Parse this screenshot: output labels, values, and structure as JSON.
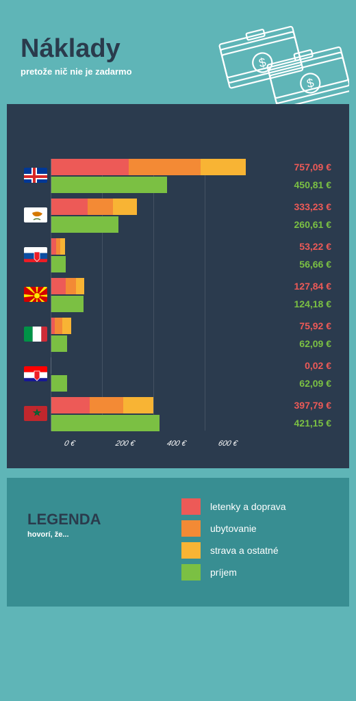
{
  "header": {
    "title": "Náklady",
    "subtitle": "pretože nič nie je zadarmo"
  },
  "chart": {
    "type": "grouped-stacked-bar",
    "x_max": 800,
    "x_ticks": [
      0,
      200,
      400,
      600
    ],
    "x_tick_labels": [
      "0 €",
      "200 €",
      "400 €",
      "600 €"
    ],
    "background": "#2b3b4e",
    "grid_color": "rgba(255,255,255,0.12)",
    "colors": {
      "letenky": "#ed5a57",
      "ubytovanie": "#f38a35",
      "strava": "#f8b434",
      "prijem": "#7bc043"
    },
    "countries": [
      {
        "name": "iceland",
        "flag": {
          "type": "nordic-cross",
          "bg": "#003897",
          "cross1": "#ffffff",
          "cross2": "#d72828"
        },
        "cost_value": "757,09 €",
        "cost_segments": [
          300,
          280,
          177
        ],
        "income_value": "450,81 €",
        "income": 450.81
      },
      {
        "name": "cyprus",
        "flag": {
          "type": "cyprus",
          "bg": "#ffffff"
        },
        "cost_value": "333,23 €",
        "cost_segments": [
          140,
          100,
          93
        ],
        "income_value": "260,61 €",
        "income": 260.61
      },
      {
        "name": "slovakia",
        "flag": {
          "type": "tricolor-h",
          "c1": "#ffffff",
          "c2": "#0b4ea2",
          "c3": "#ee1c25",
          "emblem": true
        },
        "cost_value": "53,22 €",
        "cost_segments": [
          18,
          17,
          18
        ],
        "income_value": "56,66 €",
        "income": 56.66
      },
      {
        "name": "macedonia",
        "flag": {
          "type": "macedonia",
          "bg": "#d20000",
          "sun": "#ffe600"
        },
        "cost_value": "127,84 €",
        "cost_segments": [
          55,
          40,
          33
        ],
        "income_value": "124,18 €",
        "income": 124.18
      },
      {
        "name": "italy",
        "flag": {
          "type": "tricolor-v",
          "c1": "#009246",
          "c2": "#ffffff",
          "c3": "#ce2b37"
        },
        "cost_value": "75,92 €",
        "cost_segments": [
          12,
          30,
          34
        ],
        "income_value": "62,09 €",
        "income": 62.09
      },
      {
        "name": "croatia",
        "flag": {
          "type": "tricolor-h",
          "c1": "#ff0000",
          "c2": "#ffffff",
          "c3": "#171796",
          "emblem": true
        },
        "cost_value": "0,02 €",
        "cost_segments": [
          0.02,
          0,
          0
        ],
        "income_value": "62,09 €",
        "income": 62.09
      },
      {
        "name": "morocco",
        "flag": {
          "type": "morocco",
          "bg": "#c1272d",
          "star": "#006233"
        },
        "cost_value": "397,79 €",
        "cost_segments": [
          150,
          130,
          118
        ],
        "income_value": "421,15 €",
        "income": 421.15
      }
    ]
  },
  "legend": {
    "title": "LEGENDA",
    "subtitle": "hovorí, že...",
    "items": [
      {
        "color": "#ed5a57",
        "label": "letenky a doprava"
      },
      {
        "color": "#f38a35",
        "label": "ubytovanie"
      },
      {
        "color": "#f8b434",
        "label": "strava a ostatné"
      },
      {
        "color": "#7bc043",
        "label": "príjem"
      }
    ]
  }
}
